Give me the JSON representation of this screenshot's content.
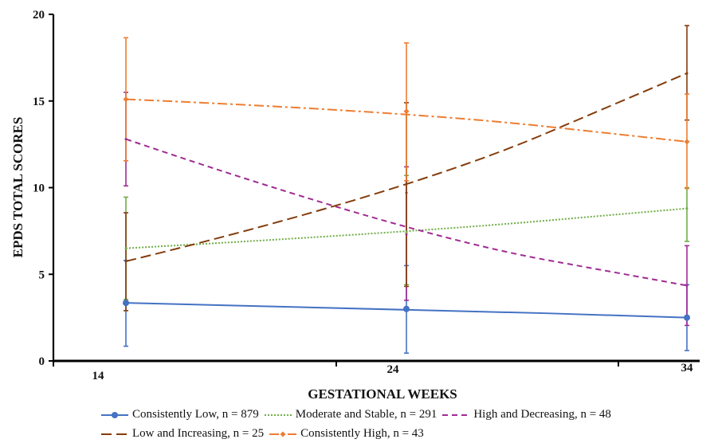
{
  "chart_data": {
    "type": "line",
    "xlabel": "GESTATIONAL WEEKS",
    "ylabel": "EPDS TOTAL SCORES",
    "x": [
      14,
      24,
      34
    ],
    "ylim": [
      0,
      20
    ],
    "yticks": [
      0,
      5,
      10,
      15,
      20
    ],
    "grid": false,
    "legend_position": "bottom",
    "series": [
      {
        "name": "Consistently Low, n = 879",
        "color": "#4472c4",
        "style": "solid",
        "marker": "circle",
        "values": [
          3.35,
          3.0,
          2.5
        ],
        "error_low": [
          0.85,
          0.45,
          0.6
        ],
        "error_high": [
          5.8,
          5.5,
          4.4
        ]
      },
      {
        "name": "Moderate and Stable, n = 291",
        "color": "#70ad47",
        "style": "dotted",
        "marker": "none",
        "values": [
          6.5,
          7.4,
          8.8
        ],
        "error_low": [
          3.55,
          4.4,
          6.9
        ],
        "error_high": [
          9.45,
          10.7,
          10.0
        ]
      },
      {
        "name": "High and Decreasing, n = 48",
        "color": "#a02b93",
        "style": "dashed",
        "marker": "none",
        "values": [
          12.8,
          7.3,
          4.35
        ],
        "error_low": [
          10.1,
          3.5,
          2.05
        ],
        "error_high": [
          15.5,
          11.2,
          6.65
        ]
      },
      {
        "name": "Low and Increasing, n = 25",
        "color": "#843c0c",
        "style": "longdash",
        "marker": "none",
        "values": [
          5.75,
          9.7,
          16.6
        ],
        "error_low": [
          2.9,
          4.3,
          13.9
        ],
        "error_high": [
          8.55,
          14.9,
          19.35
        ]
      },
      {
        "name": "Consistently High, n = 43",
        "color": "#ed7d31",
        "style": "dashdot",
        "marker": "diamond",
        "values": [
          15.1,
          14.4,
          12.65
        ],
        "error_low": [
          11.55,
          10.4,
          9.95
        ],
        "error_high": [
          18.65,
          18.35,
          15.4
        ]
      }
    ]
  }
}
